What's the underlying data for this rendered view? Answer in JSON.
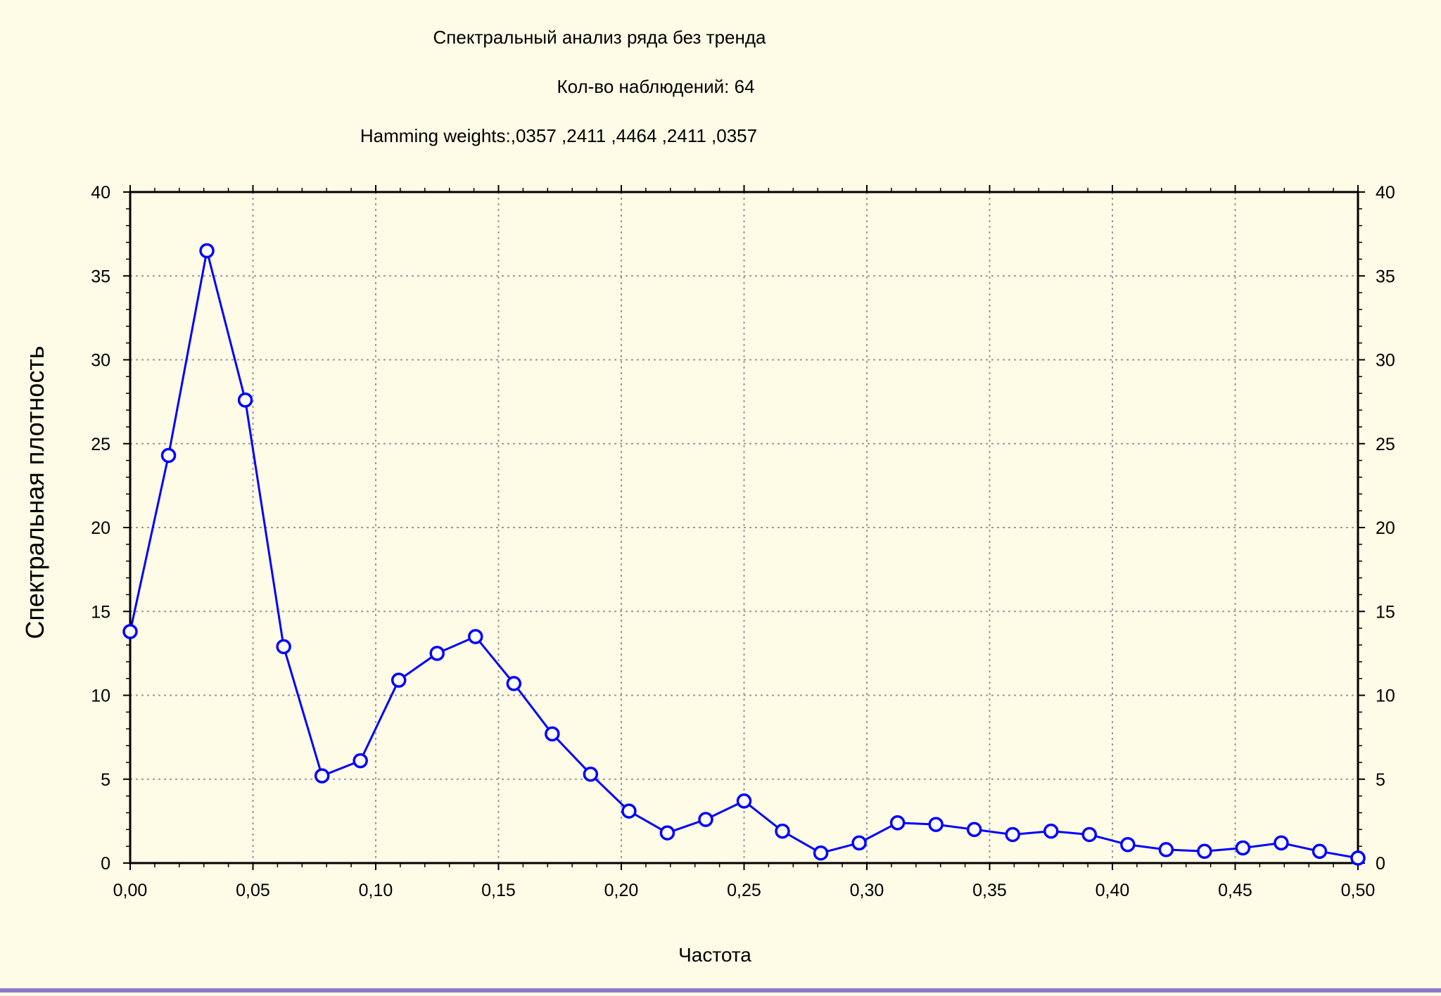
{
  "chart_data": {
    "type": "line",
    "title_lines": [
      "Спектральный анализ ряда без тренда",
      "Кол-во наблюдений: 64",
      "Hamming weights:,0357 ,2411 ,4464 ,2411 ,0357"
    ],
    "xlabel": "Частота",
    "ylabel": "Спектральная плотность",
    "xlim": [
      0,
      0.5
    ],
    "ylim": [
      0,
      40
    ],
    "x_ticks": [
      "0,00",
      "0,05",
      "0,10",
      "0,15",
      "0,20",
      "0,25",
      "0,30",
      "0,35",
      "0,40",
      "0,45",
      "0,50"
    ],
    "y_ticks": [
      "0",
      "5",
      "10",
      "15",
      "20",
      "25",
      "30",
      "35",
      "40"
    ],
    "grid": true,
    "line_color": "#0000ff",
    "series": [
      {
        "x": [
          0.0,
          0.015625,
          0.03125,
          0.046875,
          0.0625,
          0.078125,
          0.09375,
          0.109375,
          0.125,
          0.140625,
          0.15625,
          0.171875,
          0.1875,
          0.203125,
          0.21875,
          0.234375,
          0.25,
          0.265625,
          0.28125,
          0.296875,
          0.3125,
          0.328125,
          0.34375,
          0.359375,
          0.375,
          0.390625,
          0.40625,
          0.421875,
          0.4375,
          0.453125,
          0.46875,
          0.484375,
          0.5
        ],
        "values": [
          13.8,
          24.3,
          36.5,
          27.6,
          12.9,
          5.2,
          6.1,
          10.9,
          12.5,
          13.5,
          10.7,
          7.7,
          5.3,
          3.1,
          1.8,
          2.6,
          3.7,
          1.9,
          0.6,
          1.2,
          2.4,
          2.3,
          2.0,
          1.7,
          1.9,
          1.7,
          1.1,
          0.8,
          0.7,
          0.9,
          1.2,
          0.7,
          0.3
        ]
      }
    ]
  }
}
